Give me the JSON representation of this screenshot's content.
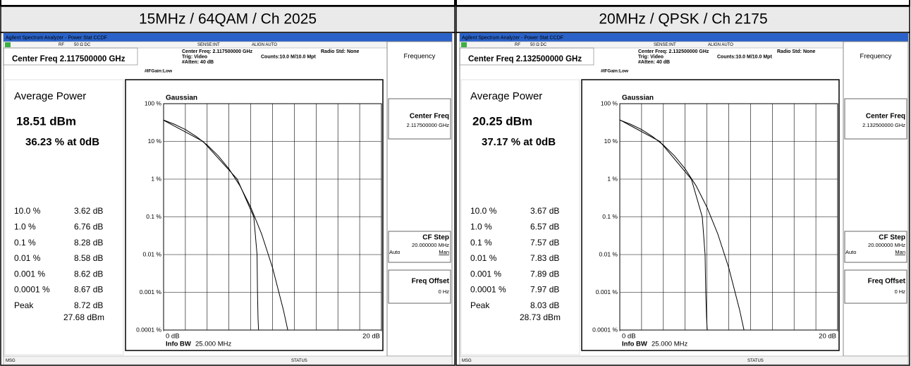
{
  "headers": [
    "15MHz / 64QAM / Ch 2025",
    "20MHz / QPSK / Ch 2175"
  ],
  "panels": [
    {
      "window_title": "Agilent Spectrum Analyzer - Power Stat CCDF",
      "status": {
        "rf": "RF",
        "impedance": "50 Ω  DC",
        "sense": "SENSE:INT",
        "align": "ALIGN AUTO"
      },
      "center_freq_label": "Center Freq 2.117500000 GHz",
      "settings": [
        "Center Freq: 2.117500000 GHz",
        "Trig: Video",
        "#Atten: 40 dB"
      ],
      "counts": "Counts:10.0 M/10.0 Mpt",
      "radio_std": "Radio Std: None",
      "ifgain": "#IFGain:Low",
      "softkeys": {
        "menu": "Frequency",
        "center_freq": "Center Freq",
        "center_freq_value": "2.117500000 GHz",
        "cf_step": "CF Step",
        "cf_step_value": "20.000000 MHz",
        "auto": "Auto",
        "man": "Man",
        "freq_offset": "Freq Offset",
        "freq_offset_value": "0 Hz"
      },
      "average_power_label": "Average Power",
      "average_power": "18.51 dBm",
      "at_0db": "36.23 % at 0dB",
      "stats": [
        {
          "label": "10.0 %",
          "value": "3.62 dB"
        },
        {
          "label": "1.0 %",
          "value": "6.76 dB"
        },
        {
          "label": "0.1 %",
          "value": "8.28 dB"
        },
        {
          "label": "0.01 %",
          "value": "8.58 dB"
        },
        {
          "label": "0.001 %",
          "value": "8.62 dB"
        },
        {
          "label": "0.0001 %",
          "value": "8.67 dB"
        },
        {
          "label": "Peak",
          "value": "8.72 dB"
        }
      ],
      "peak_power": "27.68 dBm",
      "chart": {
        "type": "line",
        "log": true,
        "annotation": "Gaussian",
        "info_label": "Info BW",
        "info_value": "25.000 MHz",
        "xlim": [
          0,
          20
        ],
        "xticks": [
          {
            "value": 0,
            "label": "0 dB"
          },
          {
            "value": 20,
            "label": "20 dB"
          }
        ],
        "xgrid": [
          2,
          4,
          6,
          8,
          10,
          12,
          14,
          16,
          18
        ],
        "ylim": [
          0.0001,
          100
        ],
        "yticks": [
          {
            "value": 100,
            "label": "100 %"
          },
          {
            "value": 10,
            "label": "10 %"
          },
          {
            "value": 1,
            "label": "1 %"
          },
          {
            "value": 0.1,
            "label": "0.1 %"
          },
          {
            "value": 0.01,
            "label": "0.01 %"
          },
          {
            "value": 0.001,
            "label": "0.001 %"
          },
          {
            "value": 0.0001,
            "label": "0.0001 %"
          }
        ],
        "series": [
          {
            "color": "#000000",
            "x": [
              0,
              1,
              2,
              3,
              4,
              5,
              6,
              7,
              8,
              9,
              10,
              11,
              11.4
            ],
            "y": [
              36.79,
              28.4,
              20.6,
              13.5,
              8.0,
              4.2,
              1.87,
              0.67,
              0.18,
              0.035,
              0.0045,
              0.00034,
              0.0001
            ]
          },
          {
            "color": "#000000",
            "x": [
              0,
              3.62,
              6.76,
              8.28,
              8.58,
              8.62,
              8.67,
              8.72,
              20
            ],
            "y": [
              36.23,
              10,
              1,
              0.1,
              0.01,
              0.001,
              0.0002,
              0.0001,
              0.0001
            ]
          }
        ]
      },
      "msg": "MSG",
      "status_label": "STATUS"
    },
    {
      "window_title": "Agilent Spectrum Analyzer - Power Stat CCDF",
      "status": {
        "rf": "RF",
        "impedance": "50 Ω  DC",
        "sense": "SENSE:INT",
        "align": "ALIGN AUTO"
      },
      "center_freq_label": "Center Freq 2.132500000 GHz",
      "settings": [
        "Center Freq: 2.132500000 GHz",
        "Trig: Video",
        "#Atten: 40 dB"
      ],
      "counts": "Counts:10.0 M/10.0 Mpt",
      "radio_std": "Radio Std: None",
      "ifgain": "#IFGain:Low",
      "softkeys": {
        "menu": "Frequency",
        "center_freq": "Center Freq",
        "center_freq_value": "2.132500000 GHz",
        "cf_step": "CF Step",
        "cf_step_value": "20.000000 MHz",
        "auto": "Auto",
        "man": "Man",
        "freq_offset": "Freq Offset",
        "freq_offset_value": "0 Hz"
      },
      "average_power_label": "Average Power",
      "average_power": "20.25 dBm",
      "at_0db": "37.17 % at 0dB",
      "stats": [
        {
          "label": "10.0 %",
          "value": "3.67 dB"
        },
        {
          "label": "1.0 %",
          "value": "6.57 dB"
        },
        {
          "label": "0.1 %",
          "value": "7.57 dB"
        },
        {
          "label": "0.01 %",
          "value": "7.83 dB"
        },
        {
          "label": "0.001 %",
          "value": "7.89 dB"
        },
        {
          "label": "0.0001 %",
          "value": "7.97 dB"
        },
        {
          "label": "Peak",
          "value": "8.03 dB"
        }
      ],
      "peak_power": "28.73 dBm",
      "chart": {
        "type": "line",
        "log": true,
        "annotation": "Gaussian",
        "info_label": "Info BW",
        "info_value": "25.000 MHz",
        "xlim": [
          0,
          20
        ],
        "xticks": [
          {
            "value": 0,
            "label": "0 dB"
          },
          {
            "value": 20,
            "label": "20 dB"
          }
        ],
        "xgrid": [
          2,
          4,
          6,
          8,
          10,
          12,
          14,
          16,
          18
        ],
        "ylim": [
          0.0001,
          100
        ],
        "yticks": [
          {
            "value": 100,
            "label": "100 %"
          },
          {
            "value": 10,
            "label": "10 %"
          },
          {
            "value": 1,
            "label": "1 %"
          },
          {
            "value": 0.1,
            "label": "0.1 %"
          },
          {
            "value": 0.01,
            "label": "0.01 %"
          },
          {
            "value": 0.001,
            "label": "0.001 %"
          },
          {
            "value": 0.0001,
            "label": "0.0001 %"
          }
        ],
        "series": [
          {
            "color": "#000000",
            "x": [
              0,
              1,
              2,
              3,
              4,
              5,
              6,
              7,
              8,
              9,
              10,
              11,
              11.4
            ],
            "y": [
              36.79,
              28.4,
              20.6,
              13.5,
              8.0,
              4.2,
              1.87,
              0.67,
              0.18,
              0.035,
              0.0045,
              0.00034,
              0.0001
            ]
          },
          {
            "color": "#000000",
            "x": [
              0,
              3.67,
              6.57,
              7.57,
              7.83,
              7.89,
              7.97,
              8.03,
              20
            ],
            "y": [
              37.17,
              10,
              1,
              0.1,
              0.01,
              0.001,
              0.0002,
              0.0001,
              0.0001
            ]
          }
        ]
      },
      "msg": "MSG",
      "status_label": "STATUS"
    }
  ]
}
